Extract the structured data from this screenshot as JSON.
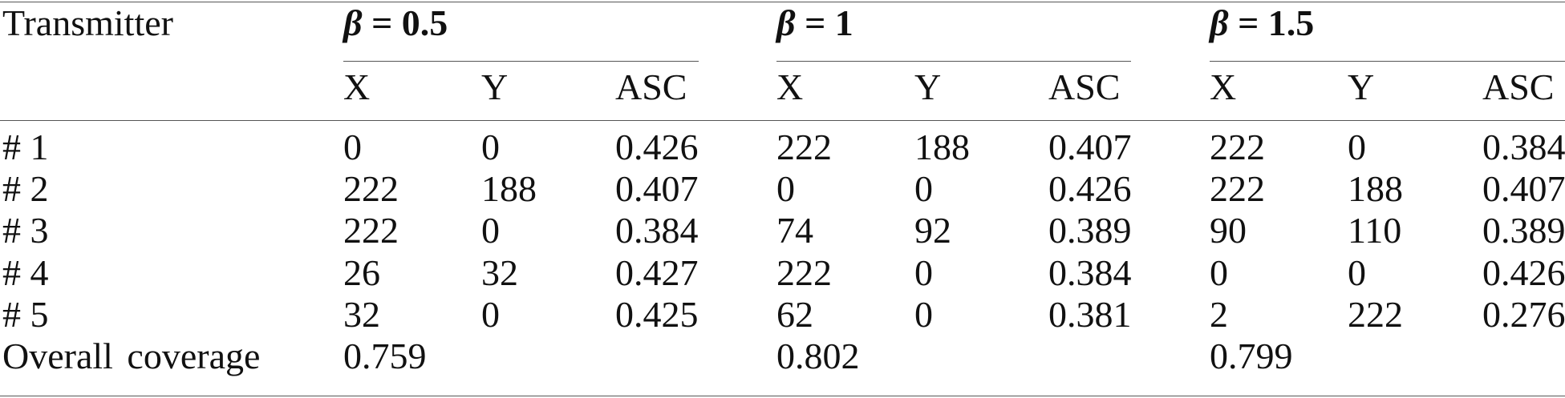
{
  "header": {
    "row_label": "Transmitter",
    "groups": [
      {
        "beta_symbol": "β",
        "equals_value": "= 0.5"
      },
      {
        "beta_symbol": "β",
        "equals_value": "= 1"
      },
      {
        "beta_symbol": "β",
        "equals_value": "= 1.5"
      }
    ],
    "subcolumns": [
      "X",
      "Y",
      "ASC"
    ]
  },
  "rows": [
    {
      "label": "# 1",
      "values": [
        "0",
        "0",
        "0.426",
        "222",
        "188",
        "0.407",
        "222",
        "0",
        "0.384"
      ]
    },
    {
      "label": "# 2",
      "values": [
        "222",
        "188",
        "0.407",
        "0",
        "0",
        "0.426",
        "222",
        "188",
        "0.407"
      ]
    },
    {
      "label": "# 3",
      "values": [
        "222",
        "0",
        "0.384",
        "74",
        "92",
        "0.389",
        "90",
        "110",
        "0.389"
      ]
    },
    {
      "label": "# 4",
      "values": [
        "26",
        "32",
        "0.427",
        "222",
        "0",
        "0.384",
        "0",
        "0",
        "0.426"
      ]
    },
    {
      "label": "# 5",
      "values": [
        "32",
        "0",
        "0.425",
        "62",
        "0",
        "0.381",
        "2",
        "222",
        "0.276"
      ]
    }
  ],
  "overall": {
    "label": "Overall coverage",
    "values": [
      "0.759",
      "0.802",
      "0.799"
    ]
  }
}
